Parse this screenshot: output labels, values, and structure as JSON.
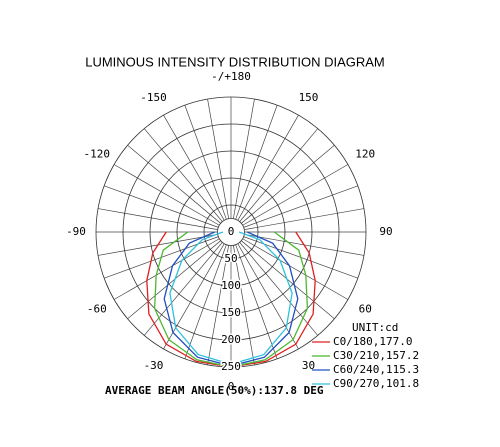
{
  "chart_data": {
    "type": "polar",
    "title": "LUMINOUS INTENSITY DISTRIBUTION DIAGRAM",
    "unit_label": "UNIT:cd",
    "footer": "AVERAGE BEAM ANGLE(50%):137.8 DEG",
    "rlim": [
      0,
      250
    ],
    "rticks": [
      0,
      50,
      100,
      150,
      200,
      250
    ],
    "angular_grid_step": 10,
    "thetaticks": [
      0,
      30,
      60,
      90,
      120,
      150,
      {
        "value": 180,
        "label": "-/+180"
      },
      -150,
      -120,
      -90,
      -60,
      -30
    ],
    "theta": [
      -90,
      -75,
      -60,
      -45,
      -30,
      -15,
      0,
      15,
      30,
      45,
      60,
      75,
      90
    ],
    "series": [
      {
        "name": "C0/180,177.0",
        "color": "#e02020",
        "values": [
          120,
          150,
          180,
          215,
          240,
          248,
          250,
          248,
          240,
          215,
          180,
          150,
          120
        ]
      },
      {
        "name": "C30/210,157.2",
        "color": "#4cb830",
        "values": [
          80,
          130,
          160,
          200,
          230,
          245,
          250,
          245,
          230,
          200,
          160,
          130,
          80
        ]
      },
      {
        "name": "C60/240,115.3",
        "color": "#2050c0",
        "values": [
          30,
          80,
          125,
          175,
          215,
          240,
          248,
          240,
          215,
          175,
          125,
          80,
          30
        ]
      },
      {
        "name": "C90/270,101.8",
        "color": "#30c0e0",
        "values": [
          15,
          55,
          105,
          160,
          205,
          235,
          245,
          235,
          205,
          160,
          105,
          55,
          15
        ]
      }
    ]
  }
}
